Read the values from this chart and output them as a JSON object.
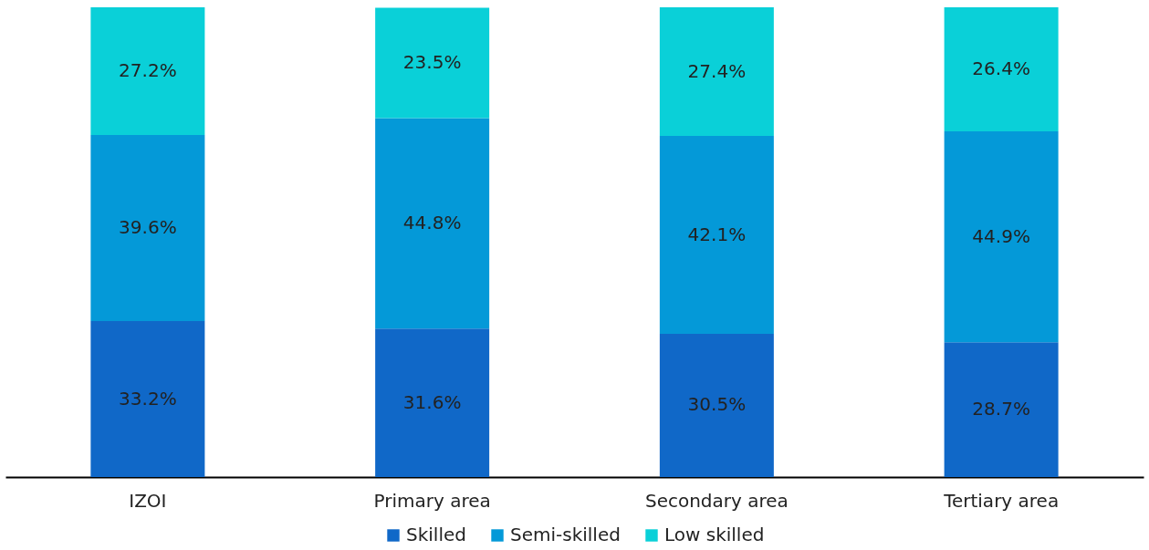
{
  "chart_data": {
    "type": "bar",
    "stacked": true,
    "categories": [
      "IZOI",
      "Primary area",
      "Secondary area",
      "Tertiary area"
    ],
    "legend": "bottom",
    "grid": false,
    "series": [
      {
        "name": "Skilled",
        "color": "#1068c8",
        "values": [
          33.2,
          31.6,
          30.5,
          28.7
        ],
        "value_labels": [
          "33.2%",
          "31.6%",
          "30.5%",
          "28.7%"
        ]
      },
      {
        "name": "Semi-skilled",
        "color": "#0499d8",
        "values": [
          39.6,
          44.8,
          42.1,
          44.9
        ],
        "value_labels": [
          "39.6%",
          "44.8%",
          "42.1%",
          "44.9%"
        ]
      },
      {
        "name": "Low skilled",
        "color": "#0ad0d8",
        "values": [
          27.2,
          23.5,
          27.4,
          26.4
        ],
        "value_labels": [
          "27.2%",
          "23.5%",
          "27.4%",
          "26.4%"
        ]
      }
    ]
  }
}
